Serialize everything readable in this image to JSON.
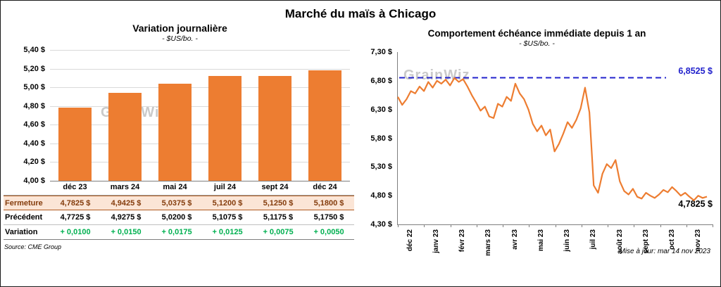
{
  "title": "Marché du maïs à Chicago",
  "watermark": "GrainWiz",
  "source": "Source: CME Group",
  "updated": "Mise à jour: mar 14 nov 2023",
  "colors": {
    "bar_orange": "#ED7D31",
    "line_orange": "#ED7D31",
    "reference_blue": "#2222CC",
    "variation_green": "#00B050",
    "close_row_bg": "#FBE5D6",
    "close_row_text": "#843C0C"
  },
  "left": {
    "title": "Variation journalière",
    "subtitle": "- $US/bo. -"
  },
  "right": {
    "title": "Comportement échéance immédiate depuis 1 an",
    "subtitle": "- $US/bo. -",
    "ref_label": "6,8525 $",
    "last_label": "4,7825 $"
  },
  "table": {
    "rows": [
      {
        "label": "Fermeture",
        "style": "close",
        "values": [
          "4,7825  $",
          "4,9425  $",
          "5,0375  $",
          "5,1200  $",
          "5,1250  $",
          "5,1800  $"
        ]
      },
      {
        "label": "Précédent",
        "style": "prev",
        "values": [
          "4,7725  $",
          "4,9275  $",
          "5,0200  $",
          "5,1075  $",
          "5,1175  $",
          "5,1750  $"
        ]
      },
      {
        "label": "Variation",
        "style": "var",
        "values": [
          "+ 0,0100",
          "+ 0,0150",
          "+ 0,0175",
          "+ 0,0125",
          "+ 0,0075",
          "+ 0,0050"
        ]
      }
    ]
  },
  "chart_data": [
    {
      "type": "bar",
      "title": "Variation journalière",
      "ylabel": "$US/bo.",
      "categories": [
        "déc 23",
        "mars 24",
        "mai 24",
        "juil 24",
        "sept 24",
        "déc 24"
      ],
      "values": [
        4.7825,
        4.9425,
        5.0375,
        5.12,
        5.125,
        5.18
      ],
      "ylim": [
        4.0,
        5.4
      ],
      "yticks": [
        "5,40 $",
        "5,20 $",
        "5,00 $",
        "4,80 $",
        "4,60 $",
        "4,40 $",
        "4,20 $",
        "4,00 $"
      ],
      "grid": true,
      "bar_color": "#ED7D31"
    },
    {
      "type": "line",
      "title": "Comportement échéance immédiate depuis 1 an",
      "ylabel": "$US/bo.",
      "x_ticks": [
        "déc 22",
        "janv 23",
        "févr 23",
        "mars 23",
        "avr 23",
        "mai 23",
        "juin 23",
        "juil 23",
        "août 23",
        "sept 23",
        "oct 23",
        "nov 23"
      ],
      "ylim": [
        4.3,
        7.3
      ],
      "yticks": [
        "7,30 $",
        "6,80 $",
        "6,30 $",
        "5,80 $",
        "5,30 $",
        "4,80 $",
        "4,30 $"
      ],
      "reference": 6.8525,
      "last": 4.7825,
      "grid": false,
      "values": [
        6.52,
        6.38,
        6.48,
        6.62,
        6.58,
        6.7,
        6.62,
        6.78,
        6.68,
        6.8,
        6.75,
        6.82,
        6.72,
        6.85,
        6.78,
        6.83,
        6.7,
        6.55,
        6.42,
        6.28,
        6.35,
        6.18,
        6.15,
        6.4,
        6.35,
        6.52,
        6.45,
        6.75,
        6.58,
        6.48,
        6.3,
        6.05,
        5.92,
        6.02,
        5.85,
        5.95,
        5.57,
        5.7,
        5.88,
        6.08,
        5.98,
        6.12,
        6.32,
        6.68,
        6.25,
        4.98,
        4.85,
        5.18,
        5.35,
        5.28,
        5.42,
        5.05,
        4.88,
        4.82,
        4.92,
        4.78,
        4.75,
        4.85,
        4.8,
        4.76,
        4.82,
        4.9,
        4.86,
        4.95,
        4.88,
        4.8,
        4.85,
        4.78,
        4.72,
        4.8,
        4.76,
        4.7825
      ]
    }
  ]
}
